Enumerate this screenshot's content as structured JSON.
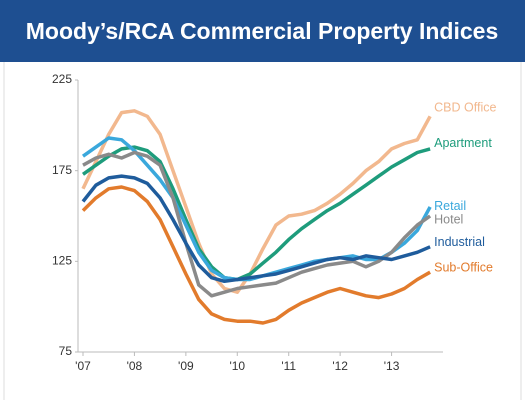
{
  "chart_data": {
    "type": "line",
    "title": "Moody’s/RCA Commercial Property Indices",
    "x": [
      2007,
      2007.25,
      2007.5,
      2007.75,
      2008,
      2008.25,
      2008.5,
      2008.75,
      2009,
      2009.25,
      2009.5,
      2009.75,
      2010,
      2010.25,
      2010.5,
      2010.75,
      2011,
      2011.25,
      2011.5,
      2011.75,
      2012,
      2012.25,
      2012.5,
      2012.75,
      2013,
      2013.25,
      2013.5,
      2013.75
    ],
    "series": [
      {
        "name": "CBD Office",
        "color": "#f2b88e",
        "values": [
          165,
          180,
          195,
          207,
          208,
          205,
          195,
          175,
          155,
          135,
          118,
          110,
          108,
          118,
          132,
          145,
          150,
          151,
          153,
          157,
          162,
          168,
          175,
          180,
          187,
          190,
          192,
          205
        ]
      },
      {
        "name": "Apartment",
        "color": "#1e9c7c",
        "values": [
          173,
          178,
          183,
          187,
          188,
          186,
          180,
          165,
          148,
          132,
          122,
          116,
          115,
          118,
          124,
          130,
          137,
          143,
          148,
          153,
          157,
          162,
          167,
          172,
          177,
          181,
          185,
          187
        ]
      },
      {
        "name": "Retail",
        "color": "#3aa8dc",
        "values": [
          183,
          188,
          193,
          192,
          186,
          178,
          170,
          160,
          145,
          130,
          120,
          116,
          115,
          115,
          117,
          119,
          121,
          123,
          125,
          126,
          127,
          128,
          126,
          126,
          130,
          135,
          142,
          155
        ]
      },
      {
        "name": "Hotel",
        "color": "#8a8a8a",
        "values": [
          178,
          182,
          184,
          182,
          185,
          183,
          178,
          160,
          135,
          112,
          106,
          108,
          110,
          111,
          112,
          113,
          116,
          119,
          121,
          123,
          124,
          125,
          122,
          125,
          130,
          138,
          145,
          150
        ]
      },
      {
        "name": "Industrial",
        "color": "#1f5c9c",
        "values": [
          158,
          167,
          171,
          172,
          171,
          168,
          160,
          148,
          135,
          123,
          116,
          114,
          115,
          116,
          117,
          118,
          120,
          122,
          124,
          126,
          127,
          126,
          128,
          127,
          126,
          128,
          130,
          133
        ]
      },
      {
        "name": "Sub-Office",
        "color": "#e27b2c",
        "values": [
          153,
          160,
          165,
          166,
          164,
          158,
          148,
          133,
          118,
          104,
          96,
          93,
          92,
          92,
          91,
          93,
          98,
          102,
          105,
          108,
          110,
          108,
          106,
          105,
          107,
          110,
          115,
          119
        ]
      }
    ],
    "xlim": [
      2007,
      2014
    ],
    "xticks": [
      {
        "value": 2007,
        "label": "'07"
      },
      {
        "value": 2008,
        "label": "'08"
      },
      {
        "value": 2009,
        "label": "'09"
      },
      {
        "value": 2010,
        "label": "'10"
      },
      {
        "value": 2011,
        "label": "'11"
      },
      {
        "value": 2012,
        "label": "'12"
      },
      {
        "value": 2013,
        "label": "'13"
      }
    ],
    "ylim": [
      75,
      225
    ],
    "yticks": [
      75,
      125,
      175,
      225
    ],
    "grid": false
  }
}
